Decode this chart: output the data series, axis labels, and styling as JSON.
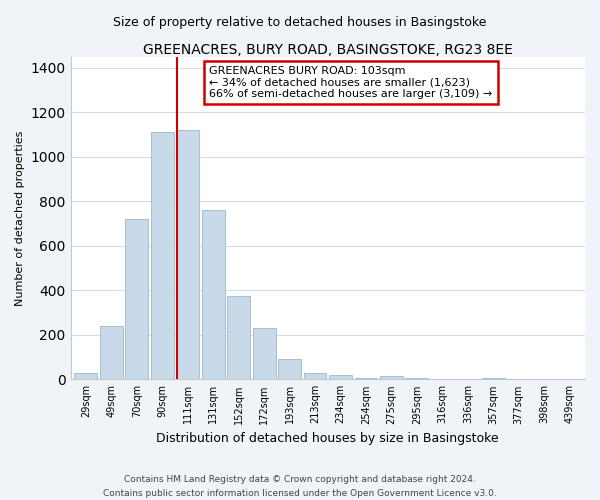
{
  "title": "GREENACRES, BURY ROAD, BASINGSTOKE, RG23 8EE",
  "subtitle": "Size of property relative to detached houses in Basingstoke",
  "xlabel": "Distribution of detached houses by size in Basingstoke",
  "ylabel": "Number of detached properties",
  "bar_labels": [
    "29sqm",
    "49sqm",
    "70sqm",
    "90sqm",
    "111sqm",
    "131sqm",
    "152sqm",
    "172sqm",
    "193sqm",
    "213sqm",
    "234sqm",
    "254sqm",
    "275sqm",
    "295sqm",
    "316sqm",
    "336sqm",
    "357sqm",
    "377sqm",
    "398sqm",
    "439sqm"
  ],
  "bar_values": [
    30,
    240,
    720,
    1110,
    1120,
    760,
    375,
    230,
    90,
    30,
    20,
    5,
    15,
    5,
    0,
    0,
    5,
    0,
    0,
    0
  ],
  "bar_color": "#c8daea",
  "bar_edge_color": "#9db8cc",
  "highlight_color": "#cc0000",
  "red_line_bar_index": 4,
  "ylim": [
    0,
    1450
  ],
  "yticks": [
    0,
    200,
    400,
    600,
    800,
    1000,
    1200,
    1400
  ],
  "annotation_title": "GREENACRES BURY ROAD: 103sqm",
  "annotation_line1": "← 34% of detached houses are smaller (1,623)",
  "annotation_line2": "66% of semi-detached houses are larger (3,109) →",
  "annotation_box_facecolor": "#ffffff",
  "annotation_box_edgecolor": "#cc0000",
  "footer_line1": "Contains HM Land Registry data © Crown copyright and database right 2024.",
  "footer_line2": "Contains public sector information licensed under the Open Government Licence v3.0.",
  "plot_bg_color": "#ffffff",
  "fig_bg_color": "#f0f4f8",
  "grid_color": "#d0dce8",
  "title_fontsize": 10,
  "subtitle_fontsize": 9,
  "ylabel_fontsize": 8,
  "xlabel_fontsize": 9,
  "tick_fontsize": 7,
  "footer_fontsize": 6.5,
  "annotation_fontsize": 8
}
